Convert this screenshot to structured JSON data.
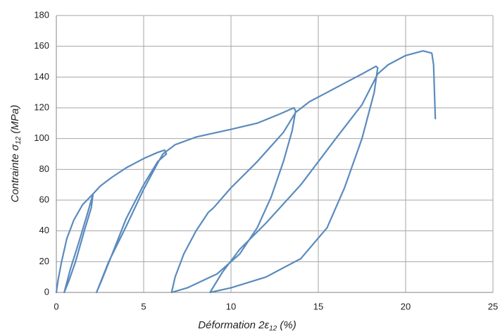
{
  "chart_data": {
    "type": "line",
    "x_label": {
      "text": "Déformation 2ε",
      "sub": "12",
      "after": " (%)"
    },
    "y_label": {
      "text": "Contrainte σ",
      "sub": "12",
      "after": " (MPa)"
    },
    "x": [
      0,
      0.1,
      0.3,
      0.6,
      1.0,
      1.5,
      2.1,
      2.0,
      1.6,
      1.1,
      0.7,
      0.45,
      0.8,
      1.3,
      1.8,
      2.1,
      2.5,
      3.2,
      4,
      5,
      5.8,
      6.2,
      6.3,
      5.8,
      5,
      4,
      3.2,
      2.6,
      2.3,
      3,
      4,
      5,
      5.8,
      6.1,
      6.8,
      8,
      10,
      11.5,
      12.8,
      13.6,
      13.7,
      13.5,
      13,
      12.3,
      11.5,
      10.5,
      9.2,
      7.5,
      6.6,
      6.8,
      7.3,
      8,
      8.7,
      9,
      10,
      11.5,
      13,
      13.7,
      14.5,
      15.5,
      16.5,
      17.5,
      18.3,
      18.4,
      18.2,
      17.5,
      16.5,
      15.5,
      14,
      12,
      10,
      8.8,
      9.5,
      10.5,
      12,
      14,
      16,
      17.5,
      18.4,
      19,
      20,
      21,
      21.5,
      21.6,
      21.7
    ],
    "values": [
      0,
      8,
      20,
      35,
      47,
      57,
      64,
      55,
      40,
      20,
      7,
      0,
      15,
      33,
      52,
      64,
      69,
      75,
      81,
      87,
      91,
      92.5,
      90,
      85,
      70,
      48,
      25,
      8,
      0,
      20,
      43,
      67,
      84,
      90,
      96,
      101,
      106,
      110,
      116,
      120,
      118,
      105,
      85,
      62,
      42,
      25,
      12,
      3,
      0,
      10,
      25,
      40,
      52,
      55,
      68,
      85,
      104,
      117,
      124,
      130,
      136,
      142,
      147,
      146,
      130,
      100,
      68,
      42,
      22,
      10,
      3,
      0,
      13,
      28,
      45,
      70,
      100,
      122,
      142,
      148,
      154,
      157,
      155.5,
      148,
      113
    ],
    "color": "#5a8bbd",
    "xlim": [
      0,
      25
    ],
    "xticks": [
      0,
      5,
      10,
      15,
      20,
      25
    ],
    "ylim": [
      0,
      180
    ],
    "yticks": [
      0,
      20,
      40,
      60,
      80,
      100,
      120,
      140,
      160,
      180
    ],
    "grid": true
  }
}
